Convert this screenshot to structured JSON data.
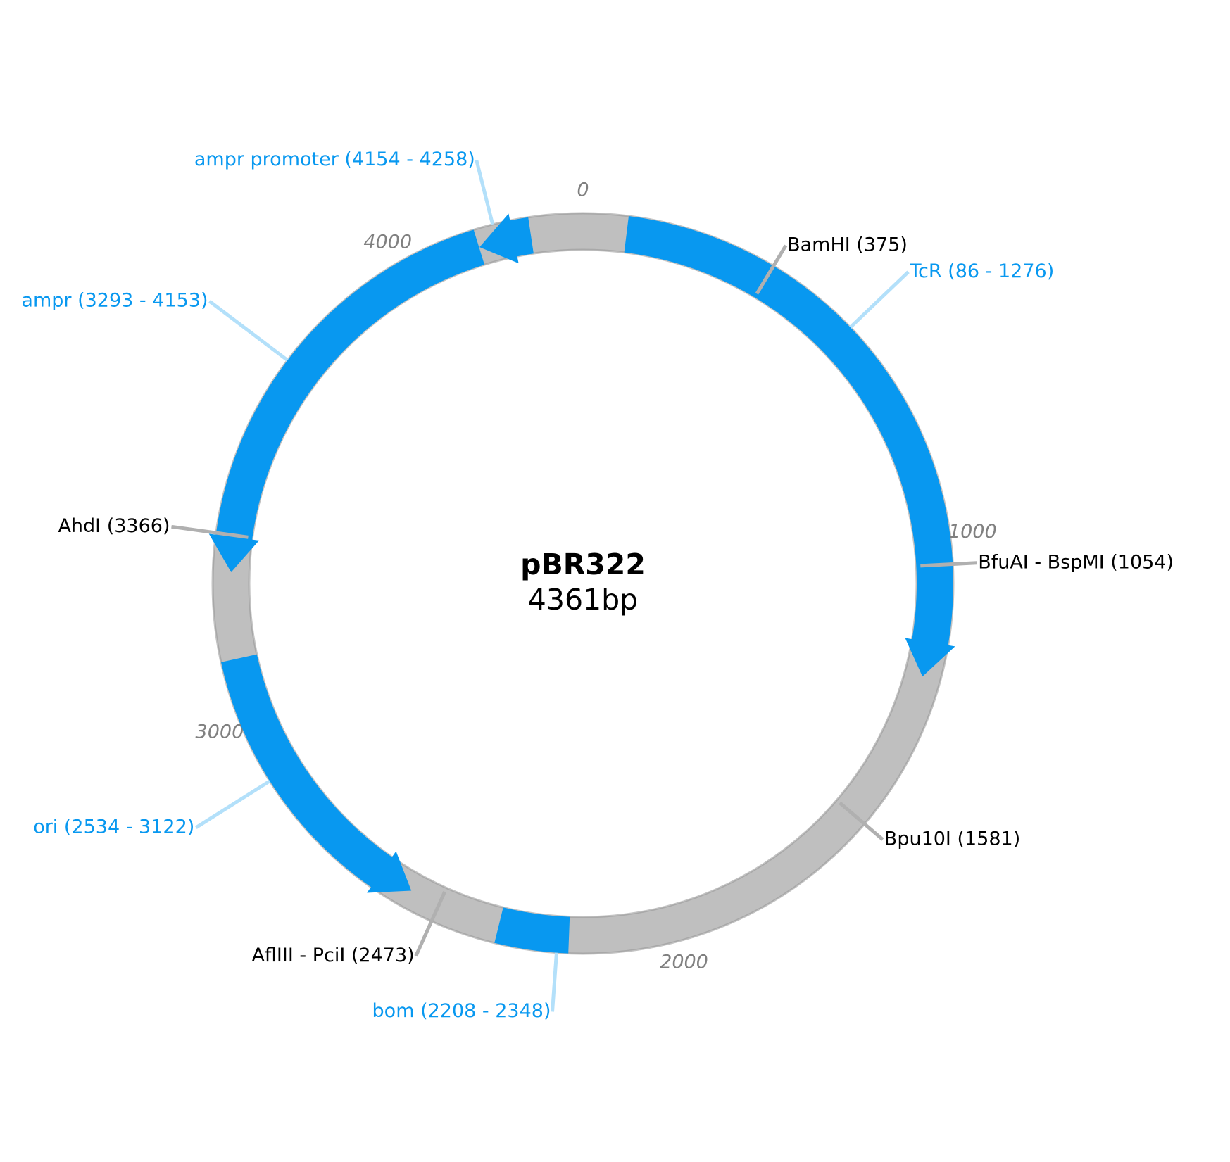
{
  "plasmid": {
    "name": "pBR322",
    "size_label": "4361bp",
    "length": 4361
  },
  "colors": {
    "backbone": "#bfbfbf",
    "backbone_edge": "#9a9a9a",
    "feature": "#0898f0",
    "feature_leader": "#b3e0fa",
    "site_leader": "#b0b0b0",
    "tick_text": "#808080",
    "site_text": "#000000"
  },
  "ticks": [
    {
      "value": 0,
      "label": "0"
    },
    {
      "value": 1000,
      "label": "1000"
    },
    {
      "value": 2000,
      "label": "2000"
    },
    {
      "value": 3000,
      "label": "3000"
    },
    {
      "value": 4000,
      "label": "4000"
    }
  ],
  "features": [
    {
      "name": "TcR",
      "start": 86,
      "end": 1276,
      "strand": 1,
      "label": "TcR (86 - 1276)"
    },
    {
      "name": "bom",
      "start": 2208,
      "end": 2348,
      "strand": 0,
      "label": "bom (2208 - 2348)"
    },
    {
      "name": "ori",
      "start": 2534,
      "end": 3122,
      "strand": -1,
      "label": "ori (2534 - 3122)"
    },
    {
      "name": "ampr",
      "start": 3293,
      "end": 4153,
      "strand": -1,
      "label": "ampr (3293 - 4153)"
    },
    {
      "name": "ampr promoter",
      "start": 4154,
      "end": 4258,
      "strand": -1,
      "label": "ampr promoter (4154 - 4258)"
    }
  ],
  "sites": [
    {
      "name": "BamHI",
      "position": 375,
      "label": "BamHI (375)"
    },
    {
      "name": "BfuAI - BspMI",
      "position": 1054,
      "label": "BfuAI - BspMI (1054)"
    },
    {
      "name": "Bpu10I",
      "position": 1581,
      "label": "Bpu10I (1581)"
    },
    {
      "name": "AflIII - PciI",
      "position": 2473,
      "label": "AflIII - PciI (2473)"
    },
    {
      "name": "AhdI",
      "position": 3366,
      "label": "AhdI (3366)"
    }
  ]
}
